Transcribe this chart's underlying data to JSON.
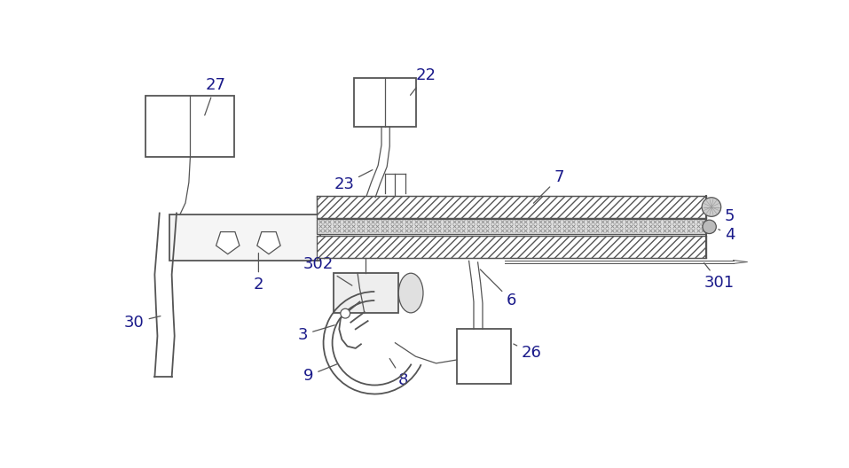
{
  "bg_color": "#ffffff",
  "line_color": "#555555",
  "label_color": "#1a1a8a",
  "label_fontsize": 13,
  "figsize": [
    9.57,
    5.28
  ],
  "dpi": 100
}
